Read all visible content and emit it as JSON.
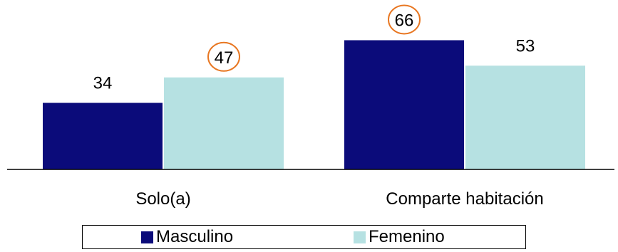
{
  "chart_data": {
    "type": "bar",
    "categories": [
      "Solo(a)",
      "Comparte habitación"
    ],
    "series": [
      {
        "name": "Masculino",
        "values": [
          34,
          66
        ],
        "color": "#0b0b7a"
      },
      {
        "name": "Femenino",
        "values": [
          47,
          53
        ],
        "color": "#b6e1e2"
      }
    ],
    "highlighted_labels": [
      {
        "series": "Femenino",
        "category": "Solo(a)",
        "value": 47
      },
      {
        "series": "Masculino",
        "category": "Comparte habitación",
        "value": 66
      }
    ],
    "highlight_color": "#e87722",
    "ylim": [
      0,
      100
    ],
    "grid": false,
    "legend_position": "bottom"
  }
}
